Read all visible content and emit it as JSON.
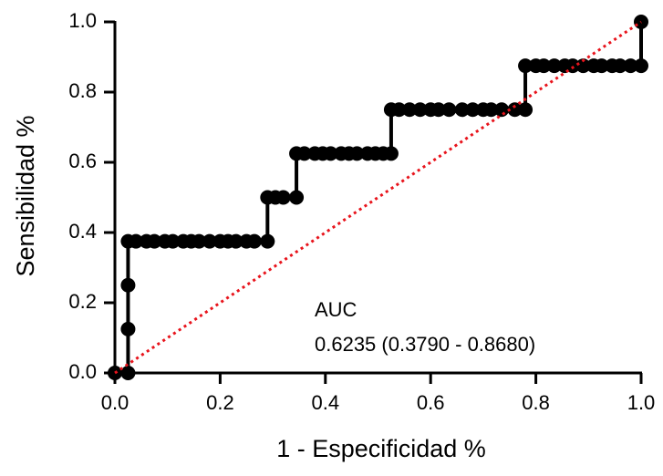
{
  "chart_data": {
    "type": "line",
    "xlabel": "1 - Especificidad %",
    "ylabel": "Sensibilidad %",
    "annotation": "AUC",
    "annotation_detail": "0.6235 (0.3790 - 0.8680)",
    "color": "#000000",
    "x": [
      0,
      0.025,
      0.025,
      0.025,
      0.025,
      0.04,
      0.06,
      0.075,
      0.095,
      0.11,
      0.13,
      0.145,
      0.16,
      0.18,
      0.2,
      0.215,
      0.23,
      0.25,
      0.265,
      0.29,
      0.29,
      0.305,
      0.32,
      0.345,
      0.345,
      0.36,
      0.38,
      0.395,
      0.41,
      0.43,
      0.445,
      0.46,
      0.48,
      0.495,
      0.51,
      0.525,
      0.525,
      0.54,
      0.56,
      0.58,
      0.6,
      0.615,
      0.635,
      0.66,
      0.68,
      0.7,
      0.715,
      0.735,
      0.76,
      0.78,
      0.78,
      0.8,
      0.815,
      0.835,
      0.855,
      0.87,
      0.89,
      0.91,
      0.925,
      0.945,
      0.96,
      0.98,
      1.0,
      1.0
    ],
    "values": [
      0,
      0,
      0.125,
      0.25,
      0.375,
      0.375,
      0.375,
      0.375,
      0.375,
      0.375,
      0.375,
      0.375,
      0.375,
      0.375,
      0.375,
      0.375,
      0.375,
      0.375,
      0.375,
      0.375,
      0.5,
      0.5,
      0.5,
      0.5,
      0.625,
      0.625,
      0.625,
      0.625,
      0.625,
      0.625,
      0.625,
      0.625,
      0.625,
      0.625,
      0.625,
      0.625,
      0.75,
      0.75,
      0.75,
      0.75,
      0.75,
      0.75,
      0.75,
      0.75,
      0.75,
      0.75,
      0.75,
      0.75,
      0.75,
      0.75,
      0.875,
      0.875,
      0.875,
      0.875,
      0.875,
      0.875,
      0.875,
      0.875,
      0.875,
      0.875,
      0.875,
      0.875,
      0.875,
      1.0
    ],
    "reference_line": {
      "color": "#e8141c",
      "x": [
        0,
        1
      ],
      "values": [
        0,
        1
      ]
    },
    "xlim": [
      0,
      1
    ],
    "ylim": [
      0,
      1
    ],
    "xticks": [
      {
        "value": 0,
        "label": "0.0"
      },
      0.2,
      0.4,
      0.6,
      0.8,
      {
        "value": 1,
        "label": "1.0"
      }
    ],
    "yticks": [
      {
        "value": 0,
        "label": "0.0"
      },
      0.2,
      0.4,
      0.6,
      0.8,
      {
        "value": 1,
        "label": "1.0"
      }
    ]
  }
}
